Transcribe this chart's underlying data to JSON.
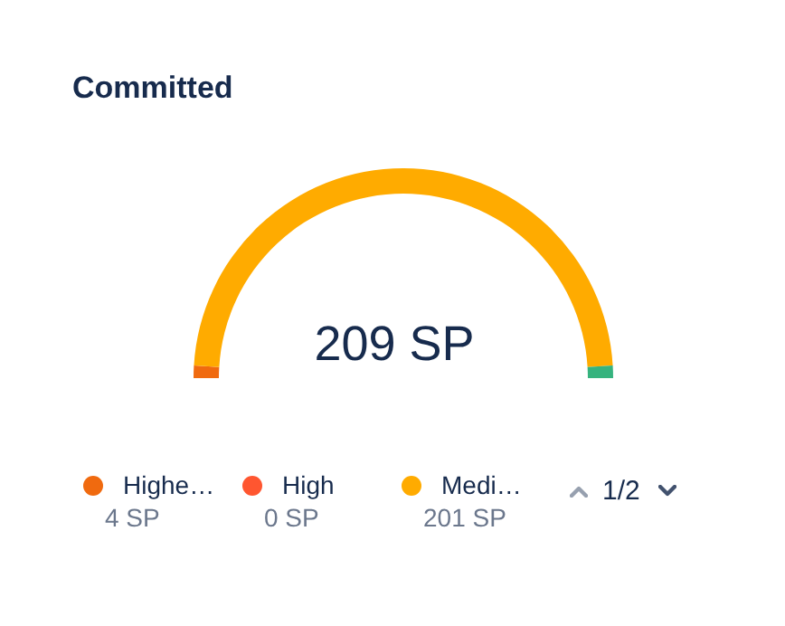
{
  "chart_data": {
    "type": "donut",
    "title": "Committed",
    "categories": [
      "Highe…",
      "High",
      "Medi…",
      null
    ],
    "values": [
      4,
      0,
      201,
      4
    ],
    "colors": [
      "#f06a0f",
      "#ff5630",
      "#ffab00",
      "#36b37e"
    ],
    "value_labels": [
      "4 SP",
      "0 SP",
      "201 SP",
      null
    ],
    "legend": "bottom",
    "annotations": [
      "209 SP",
      "1/2"
    ]
  }
}
